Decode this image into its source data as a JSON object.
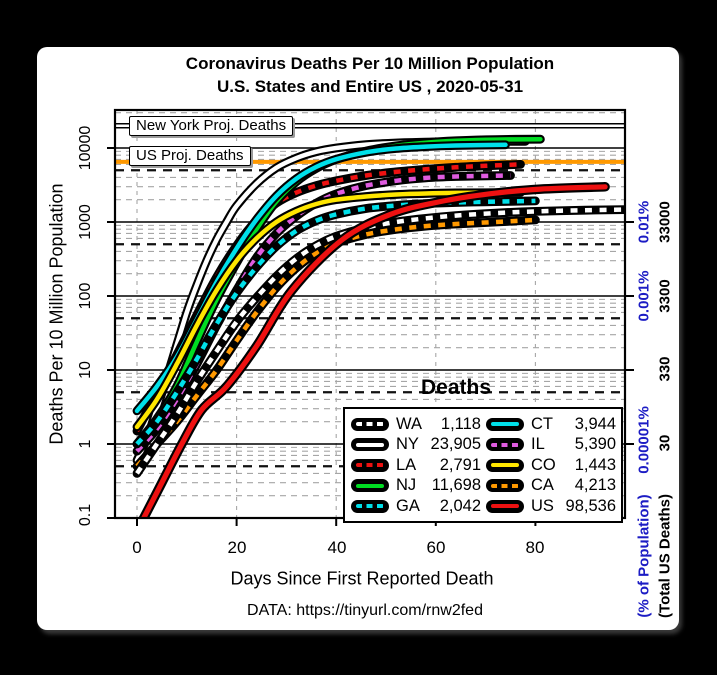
{
  "window": {
    "background": "#000000",
    "panel_background": "#ffffff"
  },
  "title": {
    "line1": "Coronavirus Deaths Per 10 Million Population",
    "line2": "U.S. States and Entire US , 2020-05-31"
  },
  "axes": {
    "y_label": "Deaths Per 10 Million Population",
    "x_label": "Days Since First Reported Death",
    "y_ticks": [
      "10000",
      "1000",
      "100",
      "10",
      "1",
      "0.1"
    ],
    "x_ticks": [
      "0",
      "20",
      "40",
      "60",
      "80"
    ],
    "right_axis": {
      "pct_title": "(% of Population)",
      "total_title": "(Total US Deaths)",
      "pct_color": "#1c1cc4",
      "ticks": [
        {
          "value": 1000,
          "pct": "0.01%",
          "total": "33000"
        },
        {
          "value": 100,
          "pct": "0.001%",
          "total": "3300"
        },
        {
          "value": 10,
          "pct": "",
          "total": "330"
        },
        {
          "value": 1,
          "pct": "0.00001%",
          "total": "30"
        }
      ]
    }
  },
  "annotations": {
    "ny_proj": {
      "label": "New York Proj. Deaths",
      "value": 20000,
      "line_color": "#000000",
      "core_color": "#ffffff"
    },
    "us_proj": {
      "label": "US Proj. Deaths",
      "value": 6500,
      "line_color": "#ff9900"
    }
  },
  "legend": {
    "title": "Deaths"
  },
  "source": "DATA: https://tinyurl.com/rnw2fed",
  "chart_data": {
    "type": "line",
    "title": "Coronavirus Deaths Per 10 Million Population — U.S. States and Entire US , 2020-05-31",
    "xlabel": "Days Since First Reported Death",
    "ylabel": "Deaths Per 10 Million Population",
    "y_scale": "log10",
    "x_range": [
      0,
      98
    ],
    "y_range": [
      0.1,
      30000
    ],
    "x_ticks": [
      0,
      20,
      40,
      60,
      80
    ],
    "y_ticks": [
      10000,
      1000,
      100,
      10,
      1,
      0.1
    ],
    "grid": {
      "minor_log_dashed": true,
      "half_decade_bold_dashed": [
        0.5,
        5,
        50,
        500,
        5000
      ],
      "vertical_dashed_at_x_ticks": true
    },
    "legend_position": "bottom-right",
    "series": [
      {
        "name": "WA",
        "total_label": "1,118",
        "color": "#ffffff",
        "dashed": true,
        "width": 4.5,
        "points": [
          [
            0,
            0.4
          ],
          [
            4,
            1
          ],
          [
            8,
            2.5
          ],
          [
            12,
            7
          ],
          [
            16,
            18
          ],
          [
            20,
            45
          ],
          [
            24,
            95
          ],
          [
            28,
            185
          ],
          [
            32,
            320
          ],
          [
            36,
            480
          ],
          [
            40,
            640
          ],
          [
            46,
            840
          ],
          [
            52,
            1000
          ],
          [
            58,
            1120
          ],
          [
            64,
            1220
          ],
          [
            72,
            1320
          ],
          [
            80,
            1390
          ],
          [
            90,
            1445
          ],
          [
            98,
            1471
          ]
        ]
      },
      {
        "name": "NY",
        "total_label": "23,905",
        "color": "#ffffff",
        "dashed": false,
        "width": 4.5,
        "points": [
          [
            0,
            0.6
          ],
          [
            2,
            1.2
          ],
          [
            4,
            3
          ],
          [
            6,
            8
          ],
          [
            8,
            22
          ],
          [
            10,
            60
          ],
          [
            12,
            140
          ],
          [
            14,
            300
          ],
          [
            16,
            580
          ],
          [
            18,
            1000
          ],
          [
            20,
            1650
          ],
          [
            24,
            3300
          ],
          [
            28,
            5400
          ],
          [
            32,
            7300
          ],
          [
            36,
            8900
          ],
          [
            40,
            10000
          ],
          [
            46,
            11100
          ],
          [
            52,
            11700
          ],
          [
            58,
            12000
          ],
          [
            64,
            12150
          ],
          [
            70,
            12250
          ],
          [
            78,
            12300
          ]
        ]
      },
      {
        "name": "LA",
        "total_label": "2,791",
        "color": "#ee1111",
        "dashed": true,
        "width": 4.5,
        "points": [
          [
            0,
            1.5
          ],
          [
            4,
            5
          ],
          [
            8,
            16
          ],
          [
            12,
            55
          ],
          [
            16,
            180
          ],
          [
            20,
            480
          ],
          [
            24,
            1050
          ],
          [
            28,
            1800
          ],
          [
            32,
            2500
          ],
          [
            36,
            3100
          ],
          [
            40,
            3600
          ],
          [
            46,
            4250
          ],
          [
            52,
            4750
          ],
          [
            58,
            5150
          ],
          [
            64,
            5480
          ],
          [
            70,
            5750
          ],
          [
            77,
            6000
          ]
        ]
      },
      {
        "name": "NJ",
        "total_label": "11,698",
        "color": "#00dd22",
        "dashed": false,
        "width": 4.5,
        "points": [
          [
            0,
            1
          ],
          [
            4,
            2.2
          ],
          [
            8,
            6
          ],
          [
            12,
            24
          ],
          [
            16,
            90
          ],
          [
            20,
            280
          ],
          [
            24,
            800
          ],
          [
            28,
            1900
          ],
          [
            32,
            3500
          ],
          [
            36,
            5300
          ],
          [
            40,
            7000
          ],
          [
            46,
            9100
          ],
          [
            52,
            10700
          ],
          [
            58,
            11800
          ],
          [
            64,
            12500
          ],
          [
            72,
            13000
          ],
          [
            81,
            13170
          ]
        ]
      },
      {
        "name": "GA",
        "total_label": "2,042",
        "color": "#00e0ea",
        "dashed": true,
        "width": 4.5,
        "points": [
          [
            0,
            1
          ],
          [
            4,
            2
          ],
          [
            8,
            5
          ],
          [
            12,
            14
          ],
          [
            16,
            42
          ],
          [
            20,
            110
          ],
          [
            24,
            245
          ],
          [
            28,
            470
          ],
          [
            32,
            760
          ],
          [
            36,
            1040
          ],
          [
            40,
            1270
          ],
          [
            46,
            1520
          ],
          [
            52,
            1670
          ],
          [
            58,
            1770
          ],
          [
            64,
            1835
          ],
          [
            72,
            1888
          ],
          [
            80,
            1926
          ]
        ]
      },
      {
        "name": "CT",
        "total_label": "3,944",
        "color": "#00e0ea",
        "dashed": false,
        "width": 4.5,
        "points": [
          [
            0,
            2.8
          ],
          [
            4,
            6
          ],
          [
            8,
            15
          ],
          [
            12,
            48
          ],
          [
            16,
            155
          ],
          [
            20,
            440
          ],
          [
            24,
            1080
          ],
          [
            28,
            2250
          ],
          [
            32,
            3850
          ],
          [
            36,
            5550
          ],
          [
            40,
            7050
          ],
          [
            46,
            8750
          ],
          [
            52,
            9850
          ],
          [
            58,
            10450
          ],
          [
            64,
            10800
          ],
          [
            74,
            11060
          ]
        ]
      },
      {
        "name": "IL",
        "total_label": "5,390",
        "color": "#e05ce0",
        "dashed": true,
        "width": 4.5,
        "points": [
          [
            0,
            0.8
          ],
          [
            4,
            1.6
          ],
          [
            8,
            4
          ],
          [
            12,
            12
          ],
          [
            16,
            40
          ],
          [
            20,
            120
          ],
          [
            24,
            330
          ],
          [
            28,
            700
          ],
          [
            32,
            1200
          ],
          [
            36,
            1800
          ],
          [
            40,
            2400
          ],
          [
            46,
            3100
          ],
          [
            52,
            3600
          ],
          [
            58,
            3950
          ],
          [
            64,
            4120
          ],
          [
            75,
            4254
          ]
        ]
      },
      {
        "name": "CO",
        "total_label": "1,443",
        "color": "#ffe600",
        "dashed": false,
        "width": 4.5,
        "points": [
          [
            0,
            1.7
          ],
          [
            4,
            4
          ],
          [
            8,
            12
          ],
          [
            12,
            40
          ],
          [
            16,
            120
          ],
          [
            20,
            300
          ],
          [
            24,
            600
          ],
          [
            28,
            1000
          ],
          [
            32,
            1400
          ],
          [
            36,
            1750
          ],
          [
            40,
            2000
          ],
          [
            46,
            2210
          ],
          [
            52,
            2350
          ],
          [
            58,
            2430
          ],
          [
            64,
            2470
          ],
          [
            77,
            2505
          ]
        ]
      },
      {
        "name": "CA",
        "total_label": "4,213",
        "color": "#ff9900",
        "dashed": true,
        "width": 4.5,
        "points": [
          [
            0,
            0.5
          ],
          [
            4,
            1
          ],
          [
            8,
            2
          ],
          [
            12,
            4.5
          ],
          [
            16,
            10
          ],
          [
            20,
            25
          ],
          [
            24,
            60
          ],
          [
            28,
            130
          ],
          [
            32,
            240
          ],
          [
            36,
            380
          ],
          [
            40,
            520
          ],
          [
            46,
            680
          ],
          [
            52,
            795
          ],
          [
            58,
            880
          ],
          [
            64,
            940
          ],
          [
            72,
            1000
          ],
          [
            80,
            1066
          ]
        ]
      },
      {
        "name": "US",
        "total_label": "98,536",
        "color": "#ee1111",
        "dashed": false,
        "width": 5.2,
        "points": [
          [
            1,
            0.09
          ],
          [
            5,
            0.3
          ],
          [
            9,
            1
          ],
          [
            13,
            2.9
          ],
          [
            18,
            6
          ],
          [
            24,
            21
          ],
          [
            31,
            117
          ],
          [
            41,
            563
          ],
          [
            51,
            1275
          ],
          [
            61,
            1891
          ],
          [
            71,
            2410
          ],
          [
            81,
            2785
          ],
          [
            94,
            2986
          ]
        ]
      }
    ],
    "draw_order": [
      1,
      2,
      3,
      5,
      6,
      7,
      4,
      8,
      0,
      9
    ]
  }
}
